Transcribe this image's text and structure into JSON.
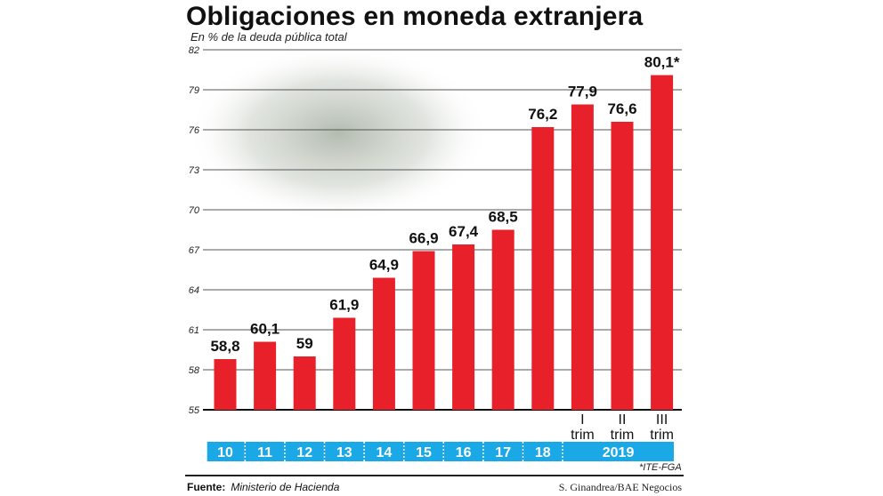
{
  "chart_data": {
    "type": "bar",
    "title": "Obligaciones en moneda extranjera",
    "subtitle": "En % de la deuda pública total",
    "categories": [
      "10",
      "11",
      "12",
      "13",
      "14",
      "15",
      "16",
      "17",
      "18",
      "2019 I trim",
      "2019 II trim",
      "2019 III trim"
    ],
    "values": [
      58.8,
      60.1,
      59,
      61.9,
      64.9,
      66.9,
      67.4,
      68.5,
      76.2,
      77.9,
      76.6,
      80.1
    ],
    "data_labels": [
      "58,8",
      "60,1",
      "59",
      "61,9",
      "64,9",
      "66,9",
      "67,4",
      "68,5",
      "76,2",
      "77,9",
      "76,6",
      "80,1*"
    ],
    "sub_labels": [
      "",
      "",
      "",
      "",
      "",
      "",
      "",
      "",
      "",
      "I\ntrim",
      "II\ntrim",
      "III\ntrim"
    ],
    "year_labels": [
      "10",
      "11",
      "12",
      "13",
      "14",
      "15",
      "16",
      "17",
      "18",
      "2019"
    ],
    "yticks": [
      55,
      58,
      61,
      64,
      67,
      70,
      73,
      76,
      79,
      82
    ],
    "ylim": [
      55,
      82
    ],
    "grid": true,
    "colors": {
      "bar": "#e8202a",
      "year_band": "#1ba8e6"
    },
    "note": "*ITE-FGA"
  },
  "footer": {
    "source_label": "Fuente:",
    "source": "Ministerio de Hacienda",
    "credit": "S. Ginandrea/BAE Negocios"
  }
}
